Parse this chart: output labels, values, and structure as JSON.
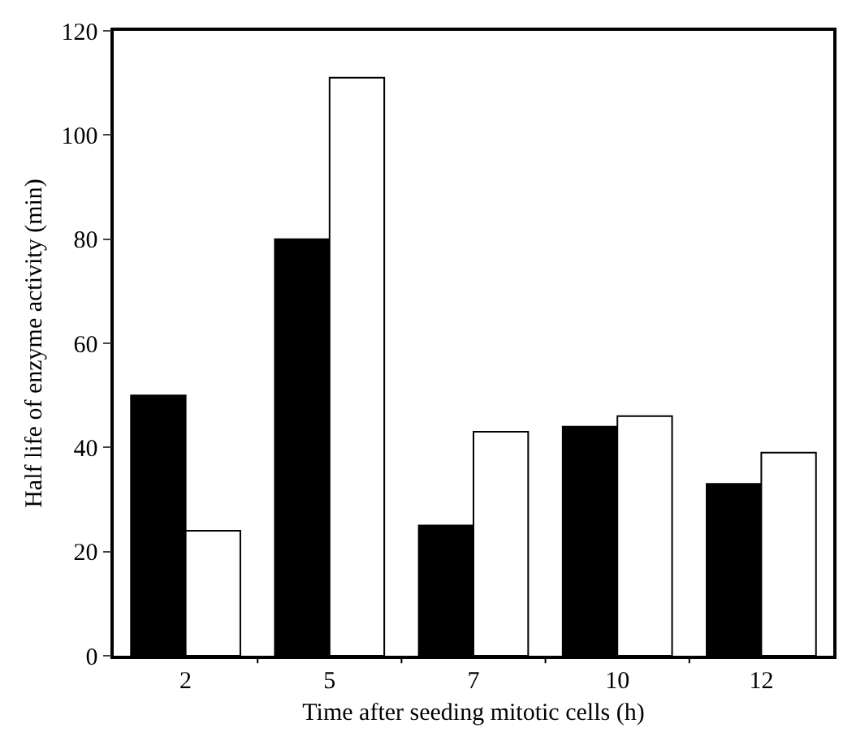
{
  "chart_data": {
    "type": "bar",
    "xlabel": "Time after seeding mitotic cells (h)",
    "ylabel": "Half life of enzyme activity (min)",
    "categories": [
      "2",
      "5",
      "7",
      "10",
      "12"
    ],
    "series": [
      {
        "color": "#000000",
        "values": [
          50,
          80,
          25,
          44,
          33
        ]
      },
      {
        "color": "#ffffff",
        "values": [
          24,
          111,
          43,
          46,
          39
        ]
      }
    ],
    "ylim": [
      0,
      120
    ],
    "yticks": [
      0,
      20,
      40,
      60,
      80,
      100,
      120
    ]
  }
}
